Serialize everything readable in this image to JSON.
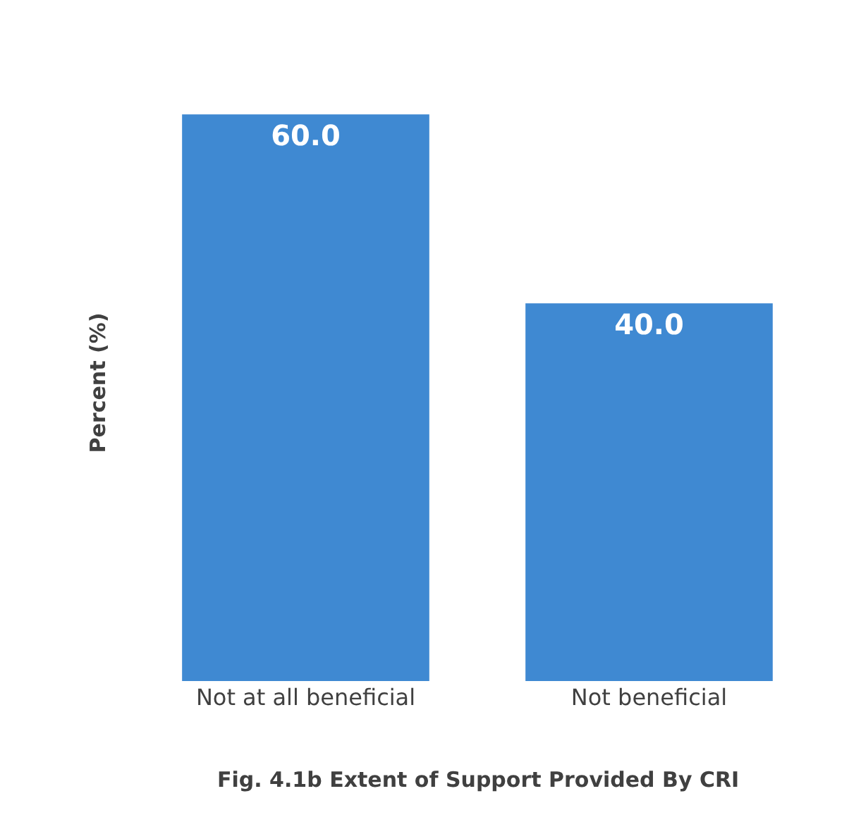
{
  "chart_data": {
    "type": "bar",
    "title": "Fig. 4.1b Extent of Support Provided By CRI",
    "ylabel": "Percent (%)",
    "categories": [
      "Not at all beneficial",
      "Not beneficial"
    ],
    "values": [
      60.0,
      40.0
    ],
    "color": "#3f89d2",
    "value_labels": [
      "60.0",
      "40.0"
    ],
    "tick_labels": "x"
  }
}
